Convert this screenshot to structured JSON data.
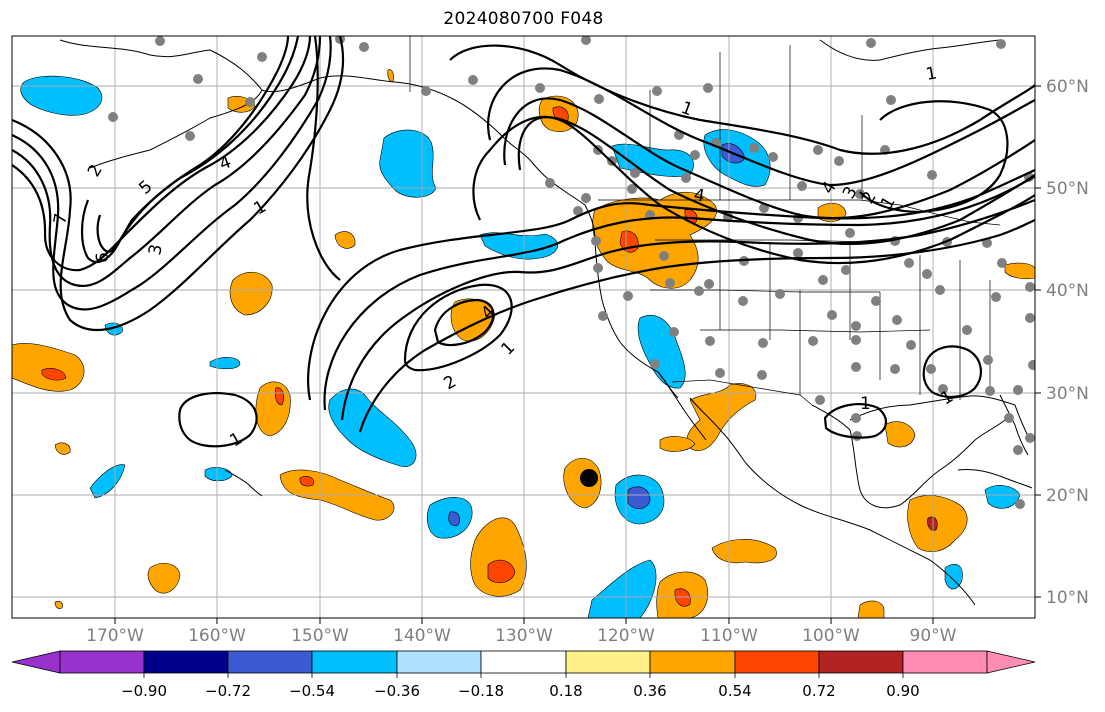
{
  "title": "2024080700 F048",
  "lat_labels": [
    "60°N",
    "50°N",
    "40°N",
    "30°N",
    "20°N",
    "10°N"
  ],
  "lon_labels": [
    "170°W",
    "160°W",
    "150°W",
    "140°W",
    "130°W",
    "120°W",
    "110°W",
    "100°W",
    "90°W"
  ],
  "colorbar": {
    "ticks": [
      "−0.90",
      "−0.72",
      "−0.54",
      "−0.36",
      "−0.18",
      "0.18",
      "0.36",
      "0.54",
      "0.72",
      "0.90"
    ],
    "colors": [
      "#9932cc",
      "#00008b",
      "#3c5bd2",
      "#00bfff",
      "#b0e2ff",
      "#ffffff",
      "#fff08c",
      "#ffa500",
      "#ff4500",
      "#b22222",
      "#ff8cb4"
    ]
  },
  "contour_labels": [
    "1",
    "1",
    "2",
    "3",
    "4",
    "5",
    "6",
    "7",
    "4",
    "1",
    "2",
    "4",
    "1",
    "1",
    "1",
    "1",
    "4",
    "3",
    "2",
    "1"
  ],
  "marker": {
    "lat": 22,
    "lon": -124.5,
    "color": "#000000"
  }
}
